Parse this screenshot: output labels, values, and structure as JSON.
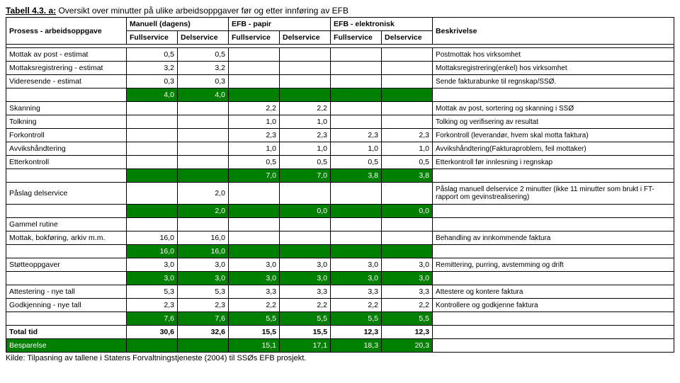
{
  "title_prefix": "Tabell 4.3. a:",
  "title_rest": " Oversikt over minutter på ulike arbeidsoppgaver før og etter innføring av EFB",
  "header": {
    "process": "Prosess - arbeidsoppgave",
    "group1": "Manuell (dagens)",
    "group2": "EFB - papir",
    "group3": "EFB - elektronisk",
    "desc": "Beskrivelse",
    "sub_full": "Fullservice",
    "sub_del": "Delservice"
  },
  "rows": [
    {
      "label": "Mottak av post - estimat",
      "v": [
        "0,5",
        "0,5",
        "",
        "",
        "",
        ""
      ],
      "desc": "Postmottak hos virksomhet"
    },
    {
      "label": "Mottaksregistrering - estimat",
      "v": [
        "3,2",
        "3,2",
        "",
        "",
        "",
        ""
      ],
      "desc": "Mottaksregistrering(enkel) hos virksomhet"
    },
    {
      "label": "Videresende - estimat",
      "v": [
        "0,3",
        "0,3",
        "",
        "",
        "",
        ""
      ],
      "desc": "Sende fakturabunke til regnskap/SSØ."
    },
    {
      "green": true,
      "label": "",
      "v": [
        "4,0",
        "4,0",
        "",
        "",
        "",
        ""
      ],
      "desc": ""
    },
    {
      "label": "Skanning",
      "v": [
        "",
        "",
        "2,2",
        "2,2",
        "",
        ""
      ],
      "desc": "Mottak av post, sortering og skanning i SSØ"
    },
    {
      "label": "Tolkning",
      "v": [
        "",
        "",
        "1,0",
        "1,0",
        "",
        ""
      ],
      "desc": "Tolking og verifisering av resultat"
    },
    {
      "label": "Forkontroll",
      "v": [
        "",
        "",
        "2,3",
        "2,3",
        "2,3",
        "2,3"
      ],
      "desc": "Forkontroll (leverandør, hvem skal motta faktura)"
    },
    {
      "label": "Avvikshåndtering",
      "v": [
        "",
        "",
        "1,0",
        "1,0",
        "1,0",
        "1,0"
      ],
      "desc": "Avvikshåndtering(Fakturaproblem, feil mottaker)"
    },
    {
      "label": "Etterkontroll",
      "v": [
        "",
        "",
        "0,5",
        "0,5",
        "0,5",
        "0,5"
      ],
      "desc": "Etterkontroll før innlesning i regnskap"
    },
    {
      "green": true,
      "label": "",
      "v": [
        "",
        "",
        "7,0",
        "7,0",
        "3,8",
        "3,8"
      ],
      "desc": ""
    },
    {
      "label": "Påslag delservice",
      "v": [
        "",
        "2,0",
        "",
        "",
        "",
        ""
      ],
      "desc": "Påslag manuell delservice 2 minutter (ikke 11 minutter som brukt i FT-rapport om gevinstrealisering)",
      "tall": true
    },
    {
      "green": true,
      "label": "",
      "v": [
        "",
        "2,0",
        "",
        "0,0",
        "",
        "0,0"
      ],
      "desc": ""
    },
    {
      "label": "Gammel rutine",
      "v": [
        "",
        "",
        "",
        "",
        "",
        ""
      ],
      "desc": ""
    },
    {
      "label": "Mottak, bokføring, arkiv m.m.",
      "v": [
        "16,0",
        "16,0",
        "",
        "",
        "",
        ""
      ],
      "desc": "Behandling av innkommende faktura"
    },
    {
      "green": true,
      "label": "",
      "v": [
        "16,0",
        "16,0",
        "",
        "",
        "",
        ""
      ],
      "desc": ""
    },
    {
      "label": "Støtteoppgaver",
      "v": [
        "3,0",
        "3,0",
        "3,0",
        "3,0",
        "3,0",
        "3,0"
      ],
      "desc": "Remittering, purring, avstemming og drift"
    },
    {
      "green": true,
      "label": "",
      "v": [
        "3,0",
        "3,0",
        "3,0",
        "3,0",
        "3,0",
        "3,0"
      ],
      "desc": ""
    },
    {
      "label": "Attestering - nye tall",
      "v": [
        "5,3",
        "5,3",
        "3,3",
        "3,3",
        "3,3",
        "3,3"
      ],
      "desc": "Attestere og kontere faktura"
    },
    {
      "label": "Godkjenning - nye tall",
      "v": [
        "2,3",
        "2,3",
        "2,2",
        "2,2",
        "2,2",
        "2,2"
      ],
      "desc": "Kontrollere og godkjenne faktura"
    },
    {
      "green": true,
      "label": "",
      "v": [
        "7,6",
        "7,6",
        "5,5",
        "5,5",
        "5,5",
        "5,5"
      ],
      "desc": ""
    },
    {
      "label": "Total tid",
      "v": [
        "30,6",
        "32,6",
        "15,5",
        "15,5",
        "12,3",
        "12,3"
      ],
      "desc": "",
      "total": true
    },
    {
      "green": true,
      "label": "Besparelse",
      "v": [
        "",
        "",
        "15,1",
        "17,1",
        "18,3",
        "20,3"
      ],
      "desc": "",
      "greenlabel": true
    }
  ],
  "source": "Kilde: Tilpasning av tallene i Statens Forvaltningstjeneste (2004) til SSØs EFB prosjekt.",
  "colors": {
    "green": "#008000"
  }
}
